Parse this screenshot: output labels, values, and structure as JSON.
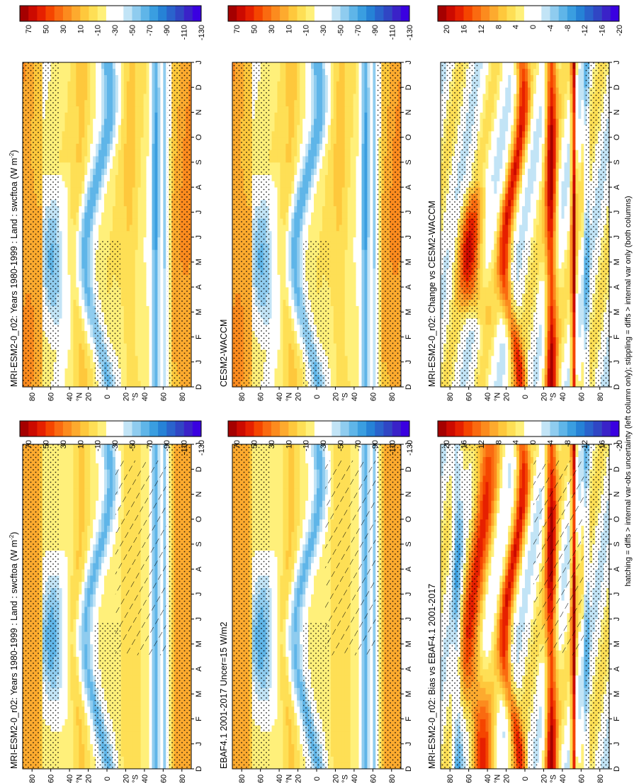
{
  "footnote": "hatching = diffs > internal var-obs uncertainty (left column only); stippling = diffs > internal var only (both columns)",
  "palettes": {
    "abs": [
      "#a50000",
      "#cc0a00",
      "#e62000",
      "#f54500",
      "#fa6a10",
      "#fc8b1e",
      "#fdaa2e",
      "#fec83c",
      "#fedf55",
      "#fff07a",
      "#ffffff",
      "#ffffff",
      "#c2e4f6",
      "#8fccef",
      "#5fb5e8",
      "#3a9ee0",
      "#2682d6",
      "#2a63cc",
      "#3046c4",
      "#3a22c8",
      "#3a00e0"
    ],
    "diff": [
      "#a50000",
      "#cc0a00",
      "#e62000",
      "#f54500",
      "#fa6a10",
      "#fc8b1e",
      "#fdaa2e",
      "#fec83c",
      "#fedf55",
      "#fff07a",
      "#ffffff",
      "#ffffff",
      "#c2e4f6",
      "#8fccef",
      "#5fb5e8",
      "#3a9ee0",
      "#2682d6",
      "#2a63cc",
      "#3046c4",
      "#3a22c8",
      "#3a00e0"
    ]
  },
  "colorbar_ticks": {
    "abs": [
      "70",
      "50",
      "30",
      "10",
      "-10",
      "-30",
      "-50",
      "-70",
      "-90",
      "-110",
      "-130"
    ],
    "diff": [
      "20",
      "16",
      "12",
      "8",
      "4",
      "0",
      "-4",
      "-8",
      "-12",
      "-16",
      "-20"
    ]
  },
  "chart_data": [
    {
      "type": "heatmap",
      "id": "p1",
      "title": "MRI-ESM2-0_r02: Years 1980-1999 : Land : swcftoa (W m",
      "title_sup": "-2",
      "title_tail": ")",
      "months": [
        "D",
        "J",
        "F",
        "M",
        "A",
        "M",
        "J",
        "J",
        "A",
        "S",
        "O",
        "N",
        "D",
        "J"
      ],
      "lat_ticks": [
        "80",
        "60",
        "40",
        "20",
        "0",
        "20",
        "40",
        "60",
        "80"
      ],
      "lat_tick_values": [
        80,
        60,
        40,
        20,
        0,
        -20,
        -40,
        -60,
        -80
      ],
      "lat_hemi_labels": [
        "°N",
        "°S"
      ],
      "palette": "abs",
      "hatching": true,
      "colorbar": true
    },
    {
      "type": "heatmap",
      "id": "p2",
      "title": "MRI-ESM2-0_r02: Years 1980-1999 : Land : swcftoa (W m",
      "title_sup": "-2",
      "title_tail": ")",
      "months": [
        "D",
        "J",
        "F",
        "M",
        "A",
        "M",
        "J",
        "J",
        "A",
        "S",
        "O",
        "N",
        "D",
        "J"
      ],
      "lat_ticks": [
        "80",
        "60",
        "40",
        "20",
        "0",
        "20",
        "40",
        "60",
        "80"
      ],
      "lat_tick_values": [
        80,
        60,
        40,
        20,
        0,
        -20,
        -40,
        -60,
        -80
      ],
      "lat_hemi_labels": [
        "°N",
        "°S"
      ],
      "palette": "abs",
      "hatching": false,
      "colorbar": true
    },
    {
      "type": "heatmap",
      "id": "p3",
      "title": "EBAF4.1 2001-2017 Uncer=15 W/m2",
      "title_sup": "",
      "title_tail": "",
      "months": [
        "D",
        "J",
        "F",
        "M",
        "A",
        "M",
        "J",
        "J",
        "A",
        "S",
        "O",
        "N",
        "D",
        "J"
      ],
      "lat_ticks": [
        "80",
        "60",
        "40",
        "20",
        "0",
        "20",
        "40",
        "60",
        "80"
      ],
      "lat_tick_values": [
        80,
        60,
        40,
        20,
        0,
        -20,
        -40,
        -60,
        -80
      ],
      "lat_hemi_labels": [
        "°N",
        "°S"
      ],
      "palette": "abs",
      "hatching": true,
      "colorbar": true
    },
    {
      "type": "heatmap",
      "id": "p4",
      "title": "CESM2-WACCM",
      "title_sup": "",
      "title_tail": "",
      "months": [
        "D",
        "J",
        "F",
        "M",
        "A",
        "M",
        "J",
        "J",
        "A",
        "S",
        "O",
        "N",
        "D",
        "J"
      ],
      "lat_ticks": [
        "80",
        "60",
        "40",
        "20",
        "0",
        "20",
        "40",
        "60",
        "80"
      ],
      "lat_tick_values": [
        80,
        60,
        40,
        20,
        0,
        -20,
        -40,
        -60,
        -80
      ],
      "lat_hemi_labels": [
        "°N",
        "°S"
      ],
      "palette": "abs",
      "hatching": false,
      "colorbar": true
    },
    {
      "type": "heatmap",
      "id": "p5",
      "title": "MRI-ESM2-0_r02: Bias vs EBAF4.1 2001-2017",
      "title_sup": "",
      "title_tail": "",
      "months": [
        "D",
        "J",
        "F",
        "M",
        "A",
        "M",
        "J",
        "J",
        "A",
        "S",
        "O",
        "N",
        "D",
        "J"
      ],
      "lat_ticks": [
        "80",
        "60",
        "40",
        "20",
        "0",
        "20",
        "40",
        "60",
        "80"
      ],
      "lat_tick_values": [
        80,
        60,
        40,
        20,
        0,
        -20,
        -40,
        -60,
        -80
      ],
      "lat_hemi_labels": [
        "°N",
        "°S"
      ],
      "palette": "diff",
      "hatching": true,
      "colorbar": true
    },
    {
      "type": "heatmap",
      "id": "p6",
      "title": "MRI-ESM2-0_r02: Change vs CESM2-WACCM",
      "title_sup": "",
      "title_tail": "",
      "months": [
        "D",
        "J",
        "F",
        "M",
        "A",
        "M",
        "J",
        "J",
        "A",
        "S",
        "O",
        "N",
        "D",
        "J"
      ],
      "lat_ticks": [
        "80",
        "60",
        "40",
        "20",
        "0",
        "20",
        "40",
        "60",
        "80"
      ],
      "lat_tick_values": [
        80,
        60,
        40,
        20,
        0,
        -20,
        -40,
        -60,
        -80
      ],
      "lat_hemi_labels": [
        "°N",
        "°S"
      ],
      "palette": "diff",
      "hatching": false,
      "colorbar": true
    }
  ]
}
